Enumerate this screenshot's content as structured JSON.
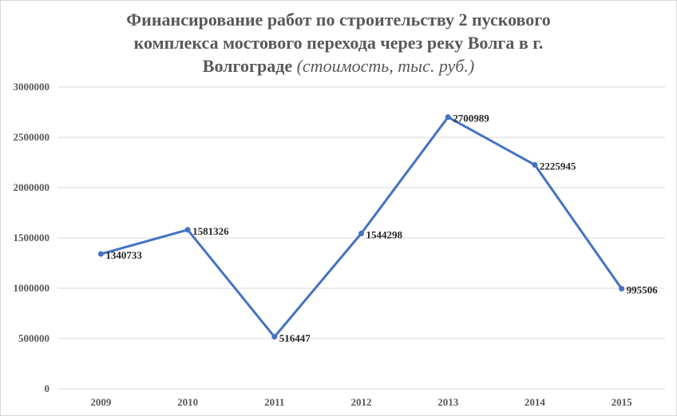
{
  "chart_data": {
    "type": "line",
    "title_lines": [
      "Финансирование работ по строительству  2 пускового",
      "комплекса мостового перехода через реку Волга в г.",
      "Волгограде"
    ],
    "title_suffix": "(стоимость, тыс. руб.)",
    "categories": [
      "2009",
      "2010",
      "2011",
      "2012",
      "2013",
      "2014",
      "2015"
    ],
    "series": [
      {
        "values": [
          1340733,
          1581326,
          516447,
          1544298,
          2700989,
          2225945,
          995506
        ]
      }
    ],
    "data_labels": [
      "1340733",
      "1581326",
      "516447",
      "1544298",
      "2700989",
      "2225945",
      "995506"
    ],
    "ylim": [
      0,
      3000000
    ],
    "yticks": [
      0,
      500000,
      1000000,
      1500000,
      2000000,
      2500000,
      3000000
    ],
    "ytick_labels": [
      "0",
      "500000",
      "1000000",
      "1500000",
      "2000000",
      "2500000",
      "3000000"
    ],
    "grid": true,
    "legend": "none",
    "line_color": "#4472c4",
    "grid_color": "#d9d9d9"
  }
}
